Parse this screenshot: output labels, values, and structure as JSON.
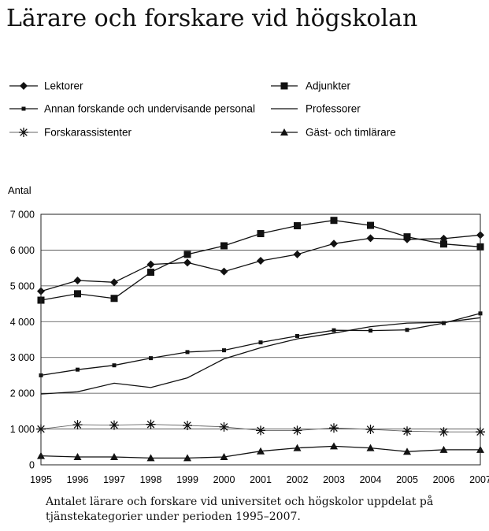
{
  "chart_data": {
    "type": "line",
    "title": "Lärare och forskare vid högskolan",
    "ylabel": "Antal",
    "xlabel": "",
    "x": [
      1995,
      1996,
      1997,
      1998,
      1999,
      2000,
      2001,
      2002,
      2003,
      2004,
      2005,
      2006,
      2007
    ],
    "ylim": [
      0,
      7000
    ],
    "yticks": [
      0,
      1000,
      2000,
      3000,
      4000,
      5000,
      6000,
      7000
    ],
    "ytick_labels": [
      "0",
      "1 000",
      "2 000",
      "3 000",
      "4 000",
      "5 000",
      "6 000",
      "7 000"
    ],
    "grid": "horizontal",
    "legend_position": "top",
    "series": [
      {
        "name": "Lektorer",
        "marker": "diamond",
        "values": [
          4850,
          5150,
          5100,
          5600,
          5650,
          5400,
          5700,
          5880,
          6180,
          6330,
          6300,
          6320,
          6420
        ]
      },
      {
        "name": "Adjunkter",
        "marker": "square",
        "values": [
          4600,
          4780,
          4650,
          5380,
          5880,
          6120,
          6460,
          6680,
          6830,
          6690,
          6370,
          6170,
          6090
        ]
      },
      {
        "name": "Annan forskande och undervisande personal",
        "marker": "small-square",
        "values": [
          2500,
          2660,
          2780,
          2980,
          3150,
          3200,
          3420,
          3600,
          3760,
          3750,
          3770,
          3960,
          4230
        ]
      },
      {
        "name": "Professorer",
        "marker": "dot",
        "values": [
          1980,
          2040,
          2280,
          2160,
          2430,
          2960,
          3270,
          3520,
          3680,
          3860,
          3960,
          3980,
          4110
        ]
      },
      {
        "name": "Forskarassistenter",
        "marker": "asterisk",
        "values": [
          1000,
          1120,
          1110,
          1130,
          1100,
          1060,
          960,
          960,
          1030,
          990,
          940,
          920,
          920
        ]
      },
      {
        "name": "Gäst- och timlärare",
        "marker": "triangle",
        "values": [
          250,
          220,
          220,
          190,
          190,
          220,
          380,
          470,
          520,
          470,
          370,
          420,
          420
        ]
      }
    ]
  },
  "caption": "Antalet lärare och forskare vid universitet och högskolor uppdelat på tjänstekategorier under perioden 1995–2007."
}
